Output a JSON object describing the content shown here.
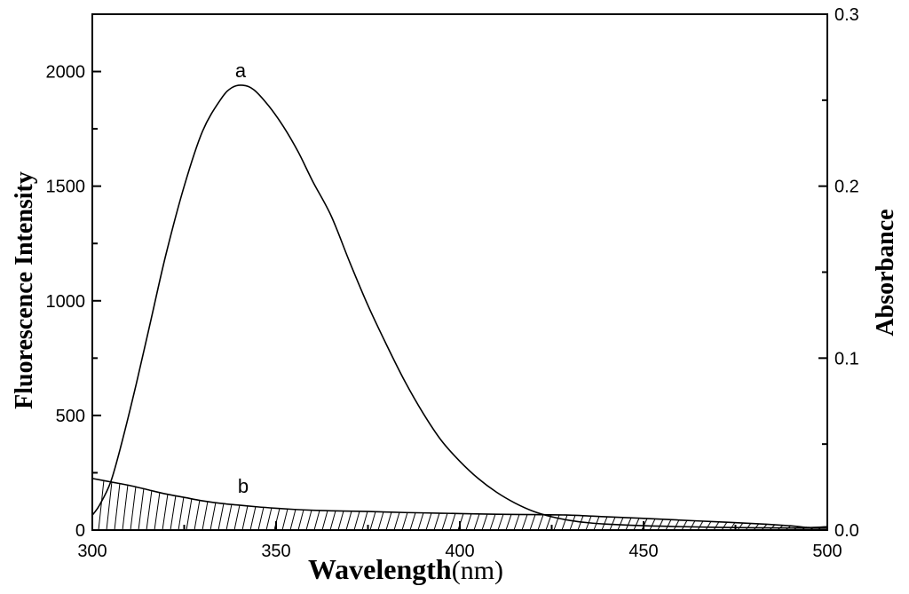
{
  "chart_data": {
    "type": "line",
    "xlabel": "Wavelength",
    "xlabel_unit": "(nm)",
    "ylabel_left": "Fluorescence Intensity",
    "ylabel_right": "Absorbance",
    "xlim": [
      300,
      500
    ],
    "ylim_left": [
      0,
      2250
    ],
    "ylim_right": [
      0,
      0.3
    ],
    "xticks": [
      "300",
      "350",
      "400",
      "450",
      "500"
    ],
    "yticks_left": [
      "0",
      "500",
      "1000",
      "1500",
      "2000"
    ],
    "yticks_right": [
      "0.0",
      "0.1",
      "0.2",
      "0.3"
    ],
    "series": [
      {
        "name": "a",
        "axis": "left",
        "x": [
          300,
          302,
          305,
          308,
          312,
          316,
          320,
          325,
          330,
          335,
          338,
          341,
          344,
          348,
          352,
          356,
          360,
          365,
          370,
          375,
          380,
          385,
          390,
          395,
          400,
          405,
          410,
          415,
          420,
          425,
          430,
          435,
          440,
          450,
          460,
          470,
          480,
          490,
          500
        ],
        "values": [
          65,
          110,
          210,
          380,
          640,
          920,
          1200,
          1500,
          1740,
          1880,
          1930,
          1940,
          1920,
          1850,
          1760,
          1650,
          1520,
          1370,
          1170,
          980,
          810,
          650,
          510,
          390,
          300,
          225,
          165,
          118,
          82,
          58,
          42,
          32,
          26,
          19,
          15,
          12,
          10,
          9,
          8
        ]
      },
      {
        "name": "b",
        "axis": "right",
        "fill": "hatched",
        "x": [
          300,
          305,
          310,
          315,
          320,
          325,
          330,
          335,
          340,
          345,
          350,
          355,
          360,
          365,
          370,
          375,
          380,
          385,
          390,
          395,
          400,
          410,
          420,
          430,
          440,
          450,
          460,
          470,
          480,
          490,
          495,
          500
        ],
        "values": [
          0.03,
          0.028,
          0.026,
          0.0235,
          0.021,
          0.019,
          0.017,
          0.0155,
          0.0145,
          0.0135,
          0.0127,
          0.012,
          0.0115,
          0.0112,
          0.011,
          0.0108,
          0.0105,
          0.0102,
          0.01,
          0.0098,
          0.0096,
          0.0092,
          0.009,
          0.0087,
          0.0077,
          0.0068,
          0.0058,
          0.0048,
          0.0038,
          0.0025,
          0.0015,
          0.002
        ]
      }
    ],
    "annotations": [
      "a",
      "b"
    ]
  }
}
